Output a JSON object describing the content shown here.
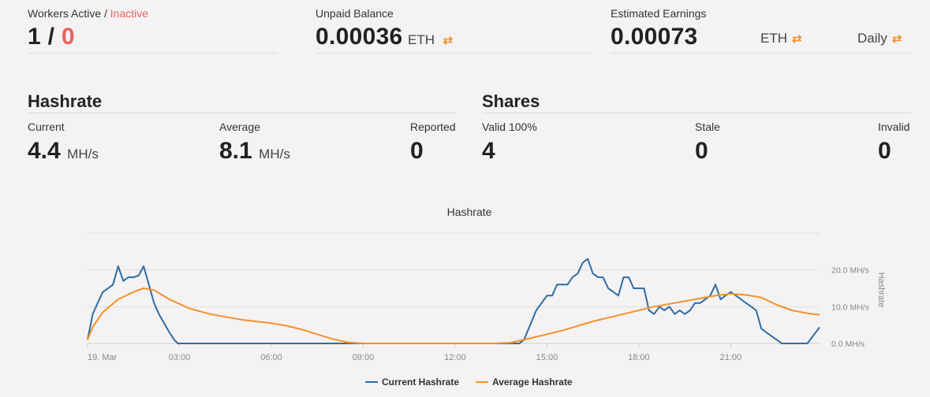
{
  "workers": {
    "label_active": "Workers Active",
    "label_sep": " / ",
    "label_inactive": "Inactive",
    "active_count": "1",
    "sep": " / ",
    "inactive_count": "0"
  },
  "unpaid": {
    "label": "Unpaid Balance",
    "value": "0.00036",
    "currency": "ETH"
  },
  "earnings": {
    "label": "Estimated Earnings",
    "value": "0.00073",
    "currency": "ETH",
    "period": "Daily"
  },
  "hashrate": {
    "title": "Hashrate",
    "current_label": "Current",
    "current_value": "4.4",
    "current_unit": "MH/s",
    "average_label": "Average",
    "average_value": "8.1",
    "average_unit": "MH/s",
    "reported_label": "Reported",
    "reported_value": "0"
  },
  "shares": {
    "title": "Shares",
    "valid_label": "Valid 100%",
    "valid_value": "4",
    "stale_label": "Stale",
    "stale_value": "0",
    "invalid_label": "Invalid",
    "invalid_value": "0"
  },
  "colors": {
    "current": "#2e6da4",
    "average": "#f5902a",
    "inactive": "#e9625e",
    "accent": "#f5902a"
  },
  "chart_data": {
    "type": "line",
    "title": "Hashrate",
    "ylabel": "Hashrate",
    "x_ticks": [
      "19. Mar",
      "03:00",
      "06:00",
      "09:00",
      "12:00",
      "15:00",
      "18:00",
      "21:00"
    ],
    "y_ticks": [
      "0.0 MH/s",
      "10.0 MH/s",
      "20.0 MH/s"
    ],
    "ylim": [
      0,
      30
    ],
    "xlim_hours": [
      0,
      23.9
    ],
    "grid": true,
    "legend_position": "bottom-center",
    "series": [
      {
        "name": "Current Hashrate",
        "points": [
          [
            0,
            1
          ],
          [
            0.17,
            8
          ],
          [
            0.33,
            11
          ],
          [
            0.5,
            14
          ],
          [
            0.67,
            15
          ],
          [
            0.83,
            16
          ],
          [
            1,
            21
          ],
          [
            1.17,
            17
          ],
          [
            1.33,
            18
          ],
          [
            1.5,
            18
          ],
          [
            1.67,
            18.5
          ],
          [
            1.83,
            21
          ],
          [
            2,
            16
          ],
          [
            2.17,
            11
          ],
          [
            2.33,
            8
          ],
          [
            2.67,
            3
          ],
          [
            2.83,
            1
          ],
          [
            2.95,
            0
          ],
          [
            14.1,
            0
          ],
          [
            14.25,
            1
          ],
          [
            14.45,
            5
          ],
          [
            14.65,
            9
          ],
          [
            15,
            13
          ],
          [
            15.17,
            13
          ],
          [
            15.33,
            16
          ],
          [
            15.5,
            16
          ],
          [
            15.67,
            16
          ],
          [
            15.83,
            18
          ],
          [
            16,
            19
          ],
          [
            16.17,
            22
          ],
          [
            16.33,
            23
          ],
          [
            16.5,
            19
          ],
          [
            16.67,
            18
          ],
          [
            16.83,
            18
          ],
          [
            17,
            15
          ],
          [
            17.17,
            14
          ],
          [
            17.33,
            13
          ],
          [
            17.5,
            18
          ],
          [
            17.67,
            18
          ],
          [
            17.83,
            15
          ],
          [
            18,
            15
          ],
          [
            18.17,
            15
          ],
          [
            18.33,
            9
          ],
          [
            18.5,
            8
          ],
          [
            18.67,
            10
          ],
          [
            18.83,
            9
          ],
          [
            19,
            10
          ],
          [
            19.17,
            8
          ],
          [
            19.33,
            9
          ],
          [
            19.5,
            8
          ],
          [
            19.67,
            9
          ],
          [
            19.83,
            11
          ],
          [
            20,
            11
          ],
          [
            20.17,
            12
          ],
          [
            20.33,
            13
          ],
          [
            20.5,
            16
          ],
          [
            20.67,
            12
          ],
          [
            20.83,
            13
          ],
          [
            21,
            14
          ],
          [
            21.17,
            13
          ],
          [
            21.33,
            12
          ],
          [
            21.5,
            11
          ],
          [
            21.67,
            10
          ],
          [
            21.83,
            9
          ],
          [
            22,
            4
          ],
          [
            22.33,
            2
          ],
          [
            22.67,
            0
          ],
          [
            23.5,
            0
          ],
          [
            23.9,
            4.4
          ]
        ]
      },
      {
        "name": "Average Hashrate",
        "points": [
          [
            0,
            1
          ],
          [
            0.17,
            4.5
          ],
          [
            0.5,
            8.5
          ],
          [
            1,
            12
          ],
          [
            1.5,
            14
          ],
          [
            1.83,
            15
          ],
          [
            2.17,
            14.5
          ],
          [
            2.67,
            12
          ],
          [
            3.33,
            9.5
          ],
          [
            4,
            8
          ],
          [
            5,
            6.5
          ],
          [
            6,
            5.5
          ],
          [
            6.5,
            4.8
          ],
          [
            7,
            3.8
          ],
          [
            7.5,
            2.5
          ],
          [
            8,
            1.2
          ],
          [
            8.5,
            0.3
          ],
          [
            9,
            0
          ],
          [
            13.3,
            0
          ],
          [
            13.8,
            0.2
          ],
          [
            14.5,
            1.5
          ],
          [
            15.5,
            3.5
          ],
          [
            16.5,
            6
          ],
          [
            17.5,
            8
          ],
          [
            18.5,
            10
          ],
          [
            19.5,
            11.5
          ],
          [
            20.5,
            13
          ],
          [
            21,
            13.5
          ],
          [
            21.5,
            13.2
          ],
          [
            22,
            12.5
          ],
          [
            22.5,
            10.5
          ],
          [
            23,
            9
          ],
          [
            23.5,
            8.2
          ],
          [
            23.9,
            7.8
          ]
        ]
      }
    ]
  }
}
